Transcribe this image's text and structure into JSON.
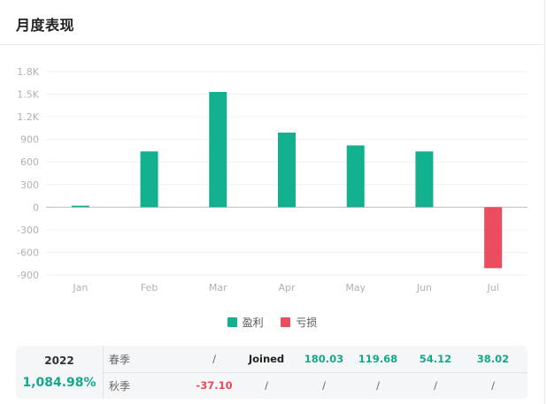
{
  "header": {
    "title": "月度表现"
  },
  "colors": {
    "profit": "#12b08f",
    "loss": "#ea4d5e",
    "grid": "#f0f0f0",
    "axis": "#bdbdbd"
  },
  "legend": {
    "profit": "盈利",
    "loss": "亏损"
  },
  "chart_data": {
    "type": "bar",
    "categories": [
      "Jan",
      "Feb",
      "Mar",
      "Apr",
      "May",
      "Jun",
      "Jul"
    ],
    "values": [
      20,
      740,
      1530,
      990,
      820,
      740,
      -810
    ],
    "ylim": [
      -900,
      1800
    ],
    "yticks": [
      1800,
      1500,
      1200,
      900,
      600,
      300,
      0,
      -300,
      -600,
      -900
    ],
    "ytick_labels": [
      "1.8K",
      "1.5K",
      "1.2K",
      "900",
      "600",
      "300",
      "0",
      "-300",
      "-600",
      "-900"
    ],
    "grid": true,
    "legend_position": "bottom"
  },
  "summary": {
    "year": "2022",
    "total": "1,084.98%",
    "rows": [
      {
        "season": "春季",
        "cells": [
          "/",
          "Joined",
          "180.03",
          "119.68",
          "54.12",
          "38.02"
        ],
        "styles": [
          "slash",
          "join",
          "pos",
          "pos",
          "pos",
          "pos"
        ]
      },
      {
        "season": "秋季",
        "cells": [
          "-37.10",
          "/",
          "/",
          "/",
          "/",
          "/"
        ],
        "styles": [
          "neg",
          "slash",
          "slash",
          "slash",
          "slash",
          "slash"
        ]
      }
    ]
  }
}
